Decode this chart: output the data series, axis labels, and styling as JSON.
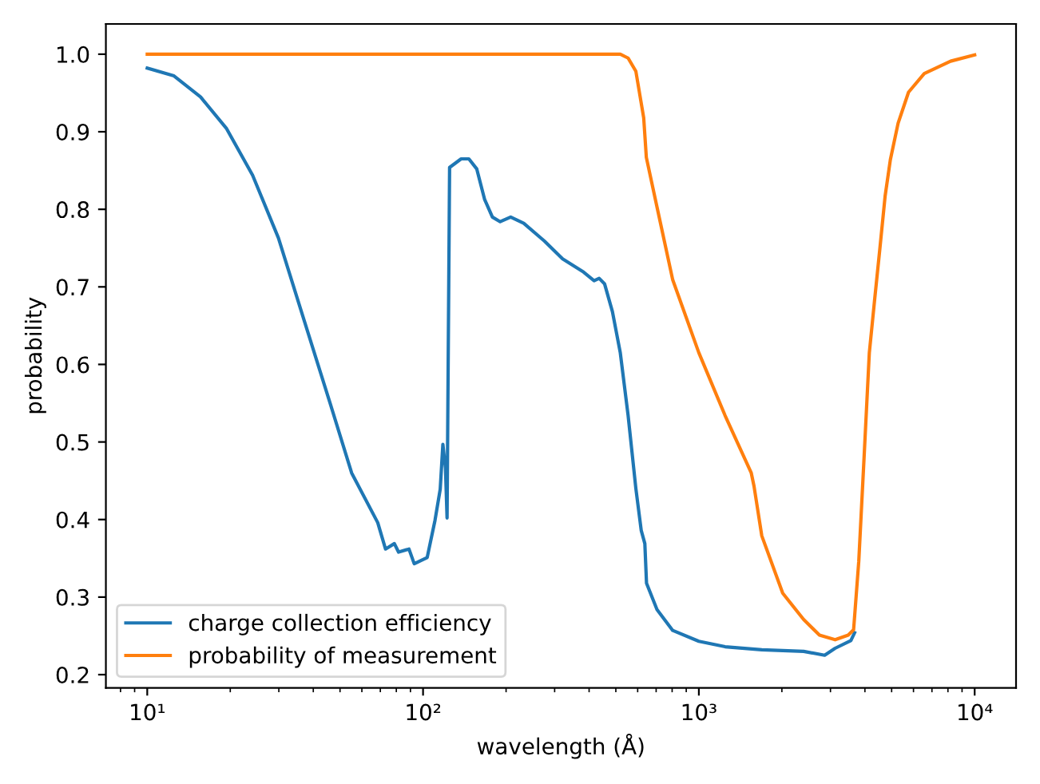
{
  "chart_data": {
    "type": "line",
    "xlabel": "wavelength (Å)",
    "ylabel": "probability",
    "log": "x",
    "legend": "bottom left",
    "grid": false,
    "xlim": [
      7.08,
      14125
    ],
    "xticks": [
      {
        "value": 10,
        "label": "10¹"
      },
      {
        "value": 100,
        "label": "10²"
      },
      {
        "value": 1000,
        "label": "10³"
      },
      {
        "value": 10000,
        "label": "10⁴"
      }
    ],
    "ylim": [
      0.183,
      1.039
    ],
    "yticks": [
      {
        "value": 0.2,
        "label": "0.2"
      },
      {
        "value": 0.3,
        "label": "0.3"
      },
      {
        "value": 0.4,
        "label": "0.4"
      },
      {
        "value": 0.5,
        "label": "0.5"
      },
      {
        "value": 0.6,
        "label": "0.6"
      },
      {
        "value": 0.7,
        "label": "0.7"
      },
      {
        "value": 0.8,
        "label": "0.8"
      },
      {
        "value": 0.9,
        "label": "0.9"
      },
      {
        "value": 1.0,
        "label": "1.0"
      }
    ],
    "series": [
      {
        "name": "charge collection efficiency",
        "color": "#1f77b4",
        "x": [
          10,
          12.5,
          15.6,
          19.4,
          24.1,
          29.9,
          37.2,
          46.3,
          55.1,
          68.5,
          73.1,
          78.7,
          81.5,
          88.9,
          92.9,
          103.5,
          110.5,
          115.4,
          118,
          120.6,
          122.2,
          124.8,
          137.4,
          146.6,
          156.6,
          167.1,
          178.4,
          190.4,
          207.8,
          231.7,
          275.6,
          320.6,
          382,
          417,
          435,
          455,
          486,
          519,
          554,
          591,
          618,
          637,
          646,
          705,
          804,
          1000,
          1245,
          1691,
          2399,
          2858,
          3119,
          3557,
          3670
        ],
        "values": [
          0.982,
          0.972,
          0.945,
          0.904,
          0.844,
          0.763,
          0.655,
          0.547,
          0.46,
          0.396,
          0.362,
          0.369,
          0.358,
          0.362,
          0.343,
          0.351,
          0.399,
          0.439,
          0.497,
          0.466,
          0.402,
          0.854,
          0.865,
          0.865,
          0.852,
          0.813,
          0.79,
          0.784,
          0.79,
          0.782,
          0.759,
          0.736,
          0.719,
          0.708,
          0.711,
          0.704,
          0.668,
          0.615,
          0.534,
          0.44,
          0.386,
          0.369,
          0.318,
          0.284,
          0.257,
          0.243,
          0.236,
          0.232,
          0.23,
          0.225,
          0.234,
          0.244,
          0.254
        ]
      },
      {
        "name": "probability of measurement",
        "color": "#ff7f0e",
        "x": [
          10,
          100,
          519,
          554,
          591,
          631,
          645,
          705,
          804,
          1000,
          1245,
          1549,
          1585,
          1691,
          2014,
          2399,
          2737,
          3119,
          3480,
          3640,
          3800,
          3972,
          4150,
          4337,
          4531,
          4735,
          4947,
          5277,
          5757,
          6565,
          8180,
          10000
        ],
        "values": [
          1.0,
          1.0,
          1.0,
          0.995,
          0.978,
          0.918,
          0.867,
          0.803,
          0.709,
          0.615,
          0.534,
          0.46,
          0.443,
          0.379,
          0.305,
          0.271,
          0.251,
          0.245,
          0.251,
          0.258,
          0.346,
          0.48,
          0.615,
          0.683,
          0.749,
          0.817,
          0.864,
          0.911,
          0.951,
          0.975,
          0.991,
          0.999
        ]
      }
    ]
  }
}
